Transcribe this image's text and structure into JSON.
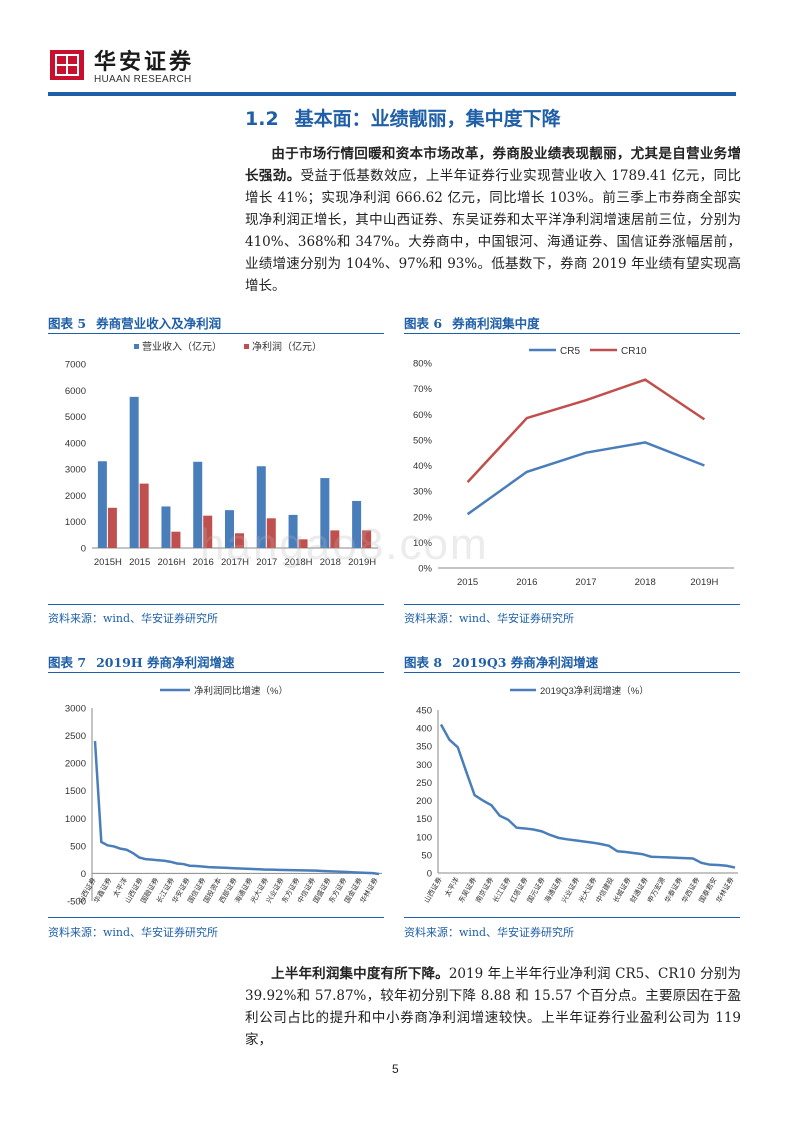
{
  "header": {
    "brand_cn": "华安证券",
    "brand_en": "HUAAN RESEARCH"
  },
  "section": {
    "number": "1.2",
    "title": "基本面：业绩靓丽，集中度下降"
  },
  "paragraph1": {
    "bold": "由于市场行情回暖和资本市场改革，券商股业绩表现靓丽，尤其是自营业务增长强劲。",
    "text": "受益于低基数效应，上半年证券行业实现营业收入 1789.41 亿元，同比增长 41%；实现净利润 666.62 亿元，同比增长 103%。前三季上市券商全部实现净利润正增长，其中山西证券、东吴证券和太平洋净利润增速居前三位，分别为 410%、368%和 347%。大券商中，中国银河、海通证券、国信证券涨幅居前，业绩增速分别为 104%、97%和 93%。低基数下，券商 2019 年业绩有望实现高增长。"
  },
  "figures": [
    {
      "label": "图表 5",
      "title": "券商营业收入及净利润",
      "source": "资料来源：wind、华安证券研究所"
    },
    {
      "label": "图表 6",
      "title": "券商利润集中度",
      "source": "资料来源：wind、华安证券研究所"
    },
    {
      "label": "图表 7",
      "title": "2019H 券商净利润增速",
      "source": "资料来源：wind、华安证券研究所"
    },
    {
      "label": "图表 8",
      "title": "2019Q3 券商净利润增速",
      "source": "资料来源：wind、华安证券研究所"
    }
  ],
  "paragraph2": {
    "bold": "上半年利润集中度有所下降。",
    "text": "2019 年上半年行业净利润 CR5、CR10 分别为 39.92%和 57.87%，较年初分别下降 8.88 和 15.57 个百分点。主要原因在于盈利公司占比的提升和中小券商净利润增速较快。上半年证券行业盈利公司为 119 家，"
  },
  "watermark": "hangao8.com",
  "page_number": "5",
  "colors": {
    "blue": "#4a7ebb",
    "red": "#c0504d",
    "accent": "#1f5fa8"
  },
  "chart_data": [
    {
      "type": "bar",
      "title": "券商营业收入及净利润",
      "categories": [
        "2015H",
        "2015",
        "2016H",
        "2016",
        "2017H",
        "2017",
        "2018H",
        "2018",
        "2019H"
      ],
      "series": [
        {
          "name": "营业收入（亿元）",
          "values": [
            3300,
            5750,
            1580,
            3280,
            1440,
            3110,
            1260,
            2660,
            1790
          ]
        },
        {
          "name": "净利润（亿元）",
          "values": [
            1530,
            2450,
            620,
            1230,
            560,
            1130,
            330,
            670,
            670
          ]
        }
      ],
      "ylim": [
        0,
        7000
      ],
      "yticks": [
        0,
        1000,
        2000,
        3000,
        4000,
        5000,
        6000,
        7000
      ],
      "legend": "top"
    },
    {
      "type": "line",
      "title": "券商利润集中度",
      "categories": [
        "2015",
        "2016",
        "2017",
        "2018",
        "2019H"
      ],
      "series": [
        {
          "name": "CR5",
          "values": [
            21,
            37.5,
            45,
            49,
            40
          ]
        },
        {
          "name": "CR10",
          "values": [
            33.5,
            58.5,
            65.5,
            73.5,
            58
          ]
        }
      ],
      "ylim": [
        0,
        80
      ],
      "yticks": [
        "0%",
        "10%",
        "20%",
        "30%",
        "40%",
        "50%",
        "60%",
        "70%",
        "80%"
      ],
      "legend": "top"
    },
    {
      "type": "line",
      "title": "2019H 券商净利润增速",
      "legend_label": "净利润同比增速（%）",
      "xticks": [
        "山西证券",
        "华鑫证券",
        "太平洋",
        "山西证券",
        "国融证券",
        "长江证券",
        "华安证券",
        "国信证券",
        "国投资本",
        "西部证券",
        "海通证券",
        "光大证券",
        "兴业证券",
        "东方证券",
        "中信证券",
        "国盛证券",
        "东方证券",
        "国金证券",
        "华林证券"
      ],
      "values": [
        2400,
        570,
        510,
        490,
        450,
        430,
        370,
        290,
        260,
        250,
        240,
        230,
        210,
        180,
        170,
        140,
        135,
        125,
        115,
        110,
        105,
        100,
        95,
        90,
        85,
        80,
        75,
        70,
        68,
        65,
        62,
        60,
        58,
        55,
        52,
        50,
        45,
        40,
        35,
        30,
        25,
        20,
        15,
        10,
        5,
        -10
      ],
      "ylim": [
        -500,
        3000
      ],
      "yticks": [
        -500,
        0,
        500,
        1000,
        1500,
        2000,
        2500,
        3000
      ]
    },
    {
      "type": "line",
      "title": "2019Q3 券商净利润增速",
      "legend_label": "2019Q3净利润增速（%）",
      "xticks": [
        "山西证券",
        "太平洋",
        "东吴证券",
        "南京证券",
        "长江证券",
        "红塔证券",
        "国元证券",
        "海通证券",
        "兴业证券",
        "光大证券",
        "中信建投",
        "长城证券",
        "财通证券",
        "申万宏源",
        "华泰证券",
        "华西证券",
        "国泰君安",
        "华林证券"
      ],
      "values": [
        410,
        368,
        347,
        280,
        215,
        200,
        187,
        158,
        147,
        125,
        123,
        120,
        115,
        105,
        97,
        93,
        90,
        87,
        84,
        80,
        75,
        60,
        58,
        55,
        52,
        45,
        44,
        43,
        42,
        41,
        40,
        28,
        23,
        22,
        20,
        15
      ],
      "ylim": [
        0,
        450
      ],
      "yticks": [
        0,
        50,
        100,
        150,
        200,
        250,
        300,
        350,
        400,
        450
      ]
    }
  ]
}
